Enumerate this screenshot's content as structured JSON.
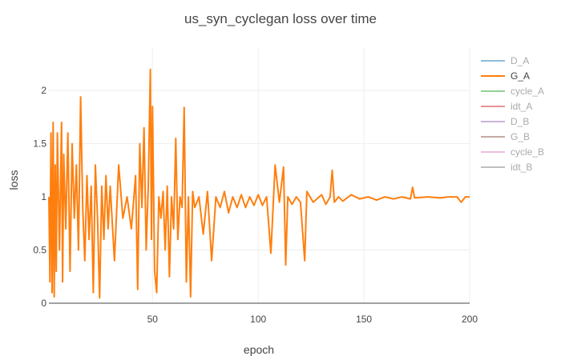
{
  "chart_data": {
    "type": "line",
    "title": "us_syn_cyclegan loss over time",
    "xlabel": "epoch",
    "ylabel": "loss",
    "xlim": [
      1,
      200
    ],
    "ylim": [
      0,
      2.4
    ],
    "x_ticks": [
      50,
      100,
      150,
      200
    ],
    "y_ticks": [
      0,
      0.5,
      1,
      1.5,
      2
    ],
    "x_tick_labels": [
      "50",
      "100",
      "150",
      "200"
    ],
    "y_tick_labels": [
      "0",
      "0.5",
      "1",
      "1.5",
      "2"
    ],
    "grid": true,
    "legend_position": "right",
    "series": [
      {
        "name": "D_A",
        "color": "#1f77b4",
        "visible": false,
        "points": []
      },
      {
        "name": "G_A",
        "color": "#ff7f0e",
        "visible": true,
        "points": [
          [
            1,
            1.0
          ],
          [
            1.5,
            0.2
          ],
          [
            2,
            1.6
          ],
          [
            2.5,
            0.1
          ],
          [
            3,
            1.7
          ],
          [
            3.5,
            0.06
          ],
          [
            4,
            1.3
          ],
          [
            4.5,
            0.3
          ],
          [
            5,
            1.6
          ],
          [
            6,
            0.5
          ],
          [
            7,
            1.7
          ],
          [
            7.5,
            0.2
          ],
          [
            8,
            1.4
          ],
          [
            9,
            0.7
          ],
          [
            10,
            1.6
          ],
          [
            11,
            0.3
          ],
          [
            12,
            1.5
          ],
          [
            13,
            0.8
          ],
          [
            14,
            1.3
          ],
          [
            15,
            0.5
          ],
          [
            16,
            1.94
          ],
          [
            17,
            0.9
          ],
          [
            18,
            0.4
          ],
          [
            19,
            1.2
          ],
          [
            20,
            0.6
          ],
          [
            21,
            1.1
          ],
          [
            22,
            0.1
          ],
          [
            23,
            1.3
          ],
          [
            24,
            0.8
          ],
          [
            25,
            0.05
          ],
          [
            26,
            1.1
          ],
          [
            27,
            0.6
          ],
          [
            28,
            1.2
          ],
          [
            29,
            0.7
          ],
          [
            30,
            1.1
          ],
          [
            32,
            0.4
          ],
          [
            34,
            1.3
          ],
          [
            36,
            0.8
          ],
          [
            38,
            1.0
          ],
          [
            40,
            0.7
          ],
          [
            42,
            1.2
          ],
          [
            43,
            0.13
          ],
          [
            44,
            1.5
          ],
          [
            45,
            0.9
          ],
          [
            46,
            1.65
          ],
          [
            47,
            0.5
          ],
          [
            48,
            1.1
          ],
          [
            49,
            2.2
          ],
          [
            49.5,
            0.6
          ],
          [
            50,
            1.85
          ],
          [
            51,
            0.3
          ],
          [
            52,
            0.1
          ],
          [
            53,
            1.0
          ],
          [
            54,
            0.8
          ],
          [
            55,
            1.05
          ],
          [
            56,
            0.5
          ],
          [
            57,
            1.1
          ],
          [
            58,
            0.25
          ],
          [
            59,
            1.0
          ],
          [
            60,
            0.7
          ],
          [
            61,
            1.55
          ],
          [
            62,
            0.6
          ],
          [
            63,
            1.0
          ],
          [
            64,
            0.9
          ],
          [
            65,
            1.84
          ],
          [
            66,
            0.2
          ],
          [
            67,
            1.0
          ],
          [
            68,
            0.06
          ],
          [
            69,
            1.05
          ],
          [
            70,
            0.9
          ],
          [
            72,
            1.0
          ],
          [
            74,
            0.65
          ],
          [
            76,
            1.05
          ],
          [
            78,
            0.4
          ],
          [
            80,
            1.0
          ],
          [
            82,
            0.9
          ],
          [
            84,
            1.05
          ],
          [
            86,
            0.85
          ],
          [
            88,
            1.0
          ],
          [
            90,
            0.9
          ],
          [
            92,
            1.02
          ],
          [
            94,
            0.9
          ],
          [
            96,
            1.0
          ],
          [
            98,
            0.92
          ],
          [
            100,
            1.02
          ],
          [
            102,
            0.92
          ],
          [
            104,
            1.0
          ],
          [
            106,
            0.47
          ],
          [
            108,
            1.3
          ],
          [
            110,
            0.95
          ],
          [
            112,
            1.28
          ],
          [
            113,
            0.36
          ],
          [
            114,
            1.0
          ],
          [
            116,
            0.93
          ],
          [
            118,
            1.0
          ],
          [
            120,
            0.95
          ],
          [
            122,
            0.4
          ],
          [
            123,
            1.05
          ],
          [
            126,
            0.95
          ],
          [
            130,
            1.02
          ],
          [
            132,
            0.93
          ],
          [
            134,
            1.0
          ],
          [
            135,
            1.25
          ],
          [
            136,
            0.95
          ],
          [
            138,
            1.0
          ],
          [
            140,
            0.96
          ],
          [
            144,
            1.02
          ],
          [
            148,
            0.98
          ],
          [
            152,
            1.0
          ],
          [
            156,
            0.97
          ],
          [
            160,
            1.0
          ],
          [
            164,
            0.98
          ],
          [
            168,
            1.0
          ],
          [
            172,
            0.98
          ],
          [
            173,
            1.09
          ],
          [
            174,
            0.99
          ],
          [
            180,
            1.0
          ],
          [
            186,
            0.99
          ],
          [
            190,
            1.0
          ],
          [
            194,
            1.0
          ],
          [
            196,
            0.95
          ],
          [
            198,
            1.0
          ],
          [
            200,
            1.0
          ]
        ]
      },
      {
        "name": "cycle_A",
        "color": "#2ca02c",
        "visible": false,
        "points": []
      },
      {
        "name": "idt_A",
        "color": "#d62728",
        "visible": false,
        "points": []
      },
      {
        "name": "D_B",
        "color": "#9467bd",
        "visible": false,
        "points": []
      },
      {
        "name": "G_B",
        "color": "#8c564b",
        "visible": false,
        "points": []
      },
      {
        "name": "cycle_B",
        "color": "#e377c2",
        "visible": false,
        "points": []
      },
      {
        "name": "idt_B",
        "color": "#7f7f7f",
        "visible": false,
        "points": []
      }
    ]
  }
}
